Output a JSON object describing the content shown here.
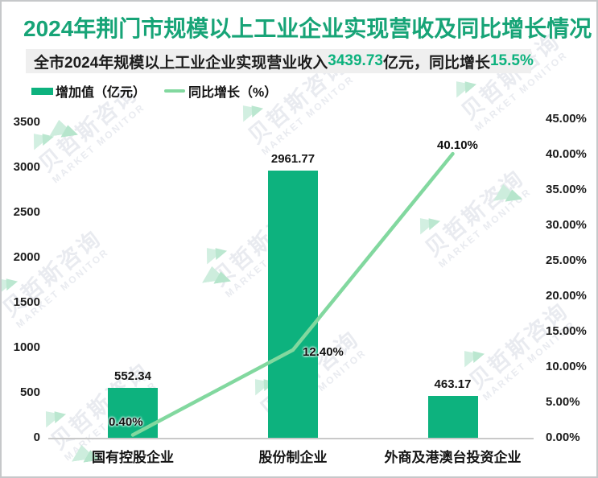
{
  "title": "2024年荆门市规模以上工业企业实现营收及同比增长情况",
  "subtitle": {
    "parts": [
      {
        "text": "全市2024年规模以上工业企业实现营业收入",
        "highlight": false
      },
      {
        "text": "3439.73",
        "highlight": true
      },
      {
        "text": "亿元，同比增长",
        "highlight": false
      },
      {
        "text": "15.5%",
        "highlight": true
      }
    ]
  },
  "legend": {
    "items": [
      {
        "label": "增加值（亿元）",
        "swatch": "bar"
      },
      {
        "label": "同比增长（%）",
        "swatch": "line"
      }
    ]
  },
  "watermark": {
    "cn": "贝哲斯咨询",
    "en": "MARKET MONITOR"
  },
  "colors": {
    "title_green": "#17a477",
    "bar_green": "#0db27e",
    "line_green": "#82d89f",
    "highlight_green": "#0db27e",
    "subtitle_bg": "#efefef"
  },
  "chart_data": {
    "type": "bar",
    "combo": "bar + line, dual axis",
    "title": "2024年荆门市规模以上工业企业实现营收及同比增长情况",
    "categories": [
      "国有控股企业",
      "股份制企业",
      "外商及港澳台投资企业"
    ],
    "series": [
      {
        "name": "增加值（亿元）",
        "type": "bar",
        "axis": "left",
        "values": [
          552.34,
          2961.77,
          463.17
        ],
        "data_labels": [
          "552.34",
          "2961.77",
          "463.17"
        ]
      },
      {
        "name": "同比增长（%）",
        "type": "line",
        "axis": "right",
        "values": [
          0.4,
          12.4,
          40.1
        ],
        "data_labels": [
          "0.40%",
          "12.40%",
          "40.10%"
        ]
      }
    ],
    "left_axis": {
      "min": 0,
      "max": 3500,
      "step": 500,
      "tick_labels": [
        "0",
        "500",
        "1000",
        "1500",
        "2000",
        "2500",
        "3000",
        "3500"
      ]
    },
    "right_axis": {
      "min": 0,
      "max": 45,
      "step": 5,
      "tick_labels": [
        "0.00%",
        "5.00%",
        "10.00%",
        "15.00%",
        "20.00%",
        "25.00%",
        "30.00%",
        "35.00%",
        "40.00%",
        "45.00%"
      ]
    },
    "grid": false,
    "legend_position": "top-left"
  }
}
